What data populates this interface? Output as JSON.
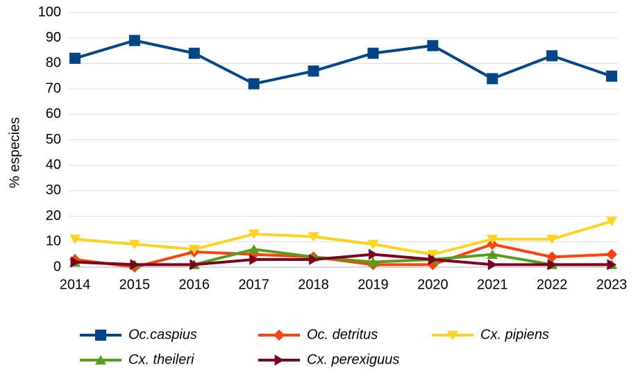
{
  "chart_data": {
    "type": "line",
    "y_label": "% especies",
    "categories": [
      "2014",
      "2015",
      "2016",
      "2017",
      "2018",
      "2019",
      "2020",
      "2021",
      "2022",
      "2023"
    ],
    "ylim": [
      0,
      100
    ],
    "yticks": [
      0,
      10,
      20,
      30,
      40,
      50,
      60,
      70,
      80,
      90,
      100
    ],
    "grid": true,
    "legend": "bottom",
    "series": [
      {
        "name": "Oc.caspius",
        "color": "#004586",
        "marker": "square",
        "values": [
          82,
          89,
          84,
          72,
          77,
          84,
          87,
          74,
          83,
          75
        ]
      },
      {
        "name": "Oc. detritus",
        "color": "#ff420e",
        "marker": "diamond",
        "values": [
          3,
          0,
          6,
          5,
          4,
          1,
          1,
          9,
          4,
          5
        ]
      },
      {
        "name": "Cx. pipiens",
        "color": "#ffd320",
        "marker": "triangle-down",
        "values": [
          11,
          9,
          7,
          13,
          12,
          9,
          5,
          11,
          11,
          18
        ]
      },
      {
        "name": "Cx. theileri",
        "color": "#579d1c",
        "marker": "triangle-up",
        "values": [
          2,
          1,
          1,
          7,
          4,
          2,
          3,
          5,
          1,
          1
        ]
      },
      {
        "name": "Cx. perexiguus",
        "color": "#7e0021",
        "marker": "triangle-right",
        "values": [
          2,
          1,
          1,
          3,
          3,
          5,
          3,
          1,
          1,
          1
        ]
      }
    ]
  }
}
